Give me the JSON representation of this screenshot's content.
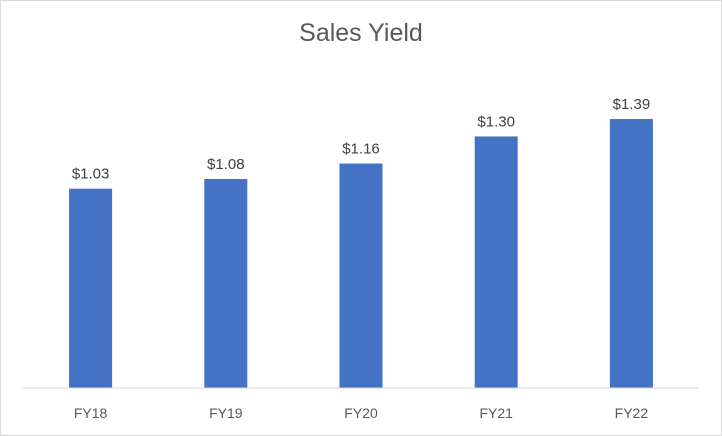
{
  "chart_data": {
    "type": "bar",
    "title": "Sales Yield",
    "categories": [
      "FY18",
      "FY19",
      "FY20",
      "FY21",
      "FY22"
    ],
    "values": [
      1.03,
      1.08,
      1.16,
      1.3,
      1.39
    ],
    "data_labels": [
      "$1.03",
      "$1.08",
      "$1.16",
      "$1.30",
      "$1.39"
    ],
    "xlabel": "",
    "ylabel": "",
    "ylim": [
      0,
      1.5
    ],
    "grid": false,
    "legend": "none",
    "bar_color": "#4472c4",
    "axis_color": "#d9d9d9"
  }
}
